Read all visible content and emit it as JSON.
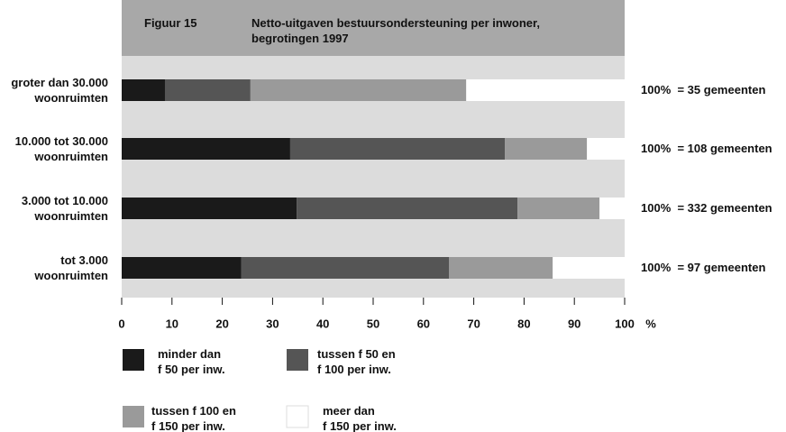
{
  "chart_data": {
    "type": "stacked-bar-horizontal",
    "figure_label": "Figuur 15",
    "title": "Netto-uitgaven bestuursondersteuning per inwoner,\nbegrotingen 1997",
    "categories": [
      "groter dan 30.000\nwoonruimten",
      "10.000 tot 30.000\nwoonruimten",
      "3.000 tot 10.000\nwoonruimten",
      "tot 3.000\nwoonruimten"
    ],
    "annotations": [
      "100%  = 35 gemeenten",
      "100%  = 108 gemeenten",
      "100%  = 332 gemeenten",
      "100%  = 97 gemeenten"
    ],
    "series": [
      {
        "name": "minder dan\nf 50 per inw.",
        "color": "#1a1a1a",
        "values": [
          8.6,
          33.5,
          34.8,
          23.8
        ]
      },
      {
        "name": "tussen f 50 en\nf 100 per inw.",
        "color": "#555555",
        "values": [
          17,
          42.7,
          43.9,
          41.3
        ]
      },
      {
        "name": "tussen f 100 en\nf 150 per inw.",
        "color": "#9a9a9a",
        "values": [
          42.9,
          16.3,
          16.3,
          20.6
        ]
      },
      {
        "name": "meer dan\nf 150 per inw.",
        "color": "#ffffff",
        "values": [
          31.5,
          7.5,
          5,
          14.3
        ]
      }
    ],
    "xlim": [
      0,
      100
    ],
    "xticks": [
      0,
      10,
      20,
      30,
      40,
      50,
      60,
      70,
      80,
      90,
      100
    ],
    "x_unit": "%"
  }
}
